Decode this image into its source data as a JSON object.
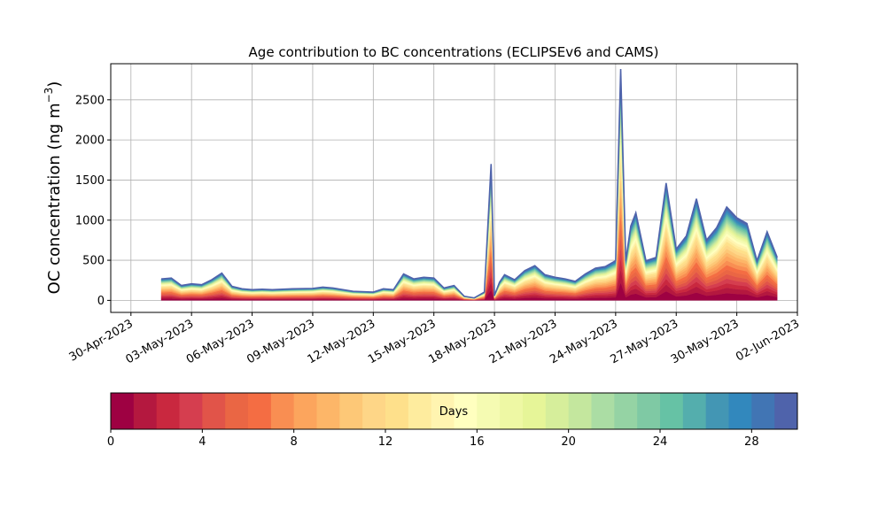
{
  "chart_data": {
    "type": "area",
    "title": "Age contribution to BC concentrations (ECLIPSEv6 and CAMS)",
    "xlabel": "",
    "ylabel": "OC concentration (ng m",
    "ylabel_superscript": "−3",
    "ylabel_close": ")",
    "ylim": [
      -150,
      2950
    ],
    "y_ticks": [
      0,
      500,
      1000,
      1500,
      2000,
      2500
    ],
    "xlim": [
      "2023-04-29",
      "2023-06-02"
    ],
    "x_ticks": [
      {
        "date": "2023-04-30",
        "label": "30-Apr-2023"
      },
      {
        "date": "2023-05-03",
        "label": "03-May-2023"
      },
      {
        "date": "2023-05-06",
        "label": "06-May-2023"
      },
      {
        "date": "2023-05-09",
        "label": "09-May-2023"
      },
      {
        "date": "2023-05-12",
        "label": "12-May-2023"
      },
      {
        "date": "2023-05-15",
        "label": "15-May-2023"
      },
      {
        "date": "2023-05-18",
        "label": "18-May-2023"
      },
      {
        "date": "2023-05-21",
        "label": "21-May-2023"
      },
      {
        "date": "2023-05-24",
        "label": "24-May-2023"
      },
      {
        "date": "2023-05-27",
        "label": "27-May-2023"
      },
      {
        "date": "2023-05-30",
        "label": "30-May-2023"
      },
      {
        "date": "2023-06-02",
        "label": "02-Jun-2023"
      }
    ],
    "grid": true,
    "total_series": {
      "x": [
        "2023-05-01T12:00",
        "2023-05-02T00:00",
        "2023-05-02T12:00",
        "2023-05-03T00:00",
        "2023-05-03T12:00",
        "2023-05-04T00:00",
        "2023-05-04T12:00",
        "2023-05-05T00:00",
        "2023-05-05T12:00",
        "2023-05-06T00:00",
        "2023-05-06T12:00",
        "2023-05-07T00:00",
        "2023-05-08T00:00",
        "2023-05-09T00:00",
        "2023-05-09T12:00",
        "2023-05-10T00:00",
        "2023-05-10T12:00",
        "2023-05-11T00:00",
        "2023-05-12T00:00",
        "2023-05-12T12:00",
        "2023-05-13T00:00",
        "2023-05-13T12:00",
        "2023-05-14T00:00",
        "2023-05-14T12:00",
        "2023-05-15T00:00",
        "2023-05-15T12:00",
        "2023-05-16T00:00",
        "2023-05-16T12:00",
        "2023-05-17T00:00",
        "2023-05-17T12:00",
        "2023-05-17T20:00",
        "2023-05-18T00:00",
        "2023-05-18T06:00",
        "2023-05-18T12:00",
        "2023-05-19T00:00",
        "2023-05-19T12:00",
        "2023-05-20T00:00",
        "2023-05-20T12:00",
        "2023-05-21T00:00",
        "2023-05-21T12:00",
        "2023-05-22T00:00",
        "2023-05-22T12:00",
        "2023-05-23T00:00",
        "2023-05-23T12:00",
        "2023-05-24T00:00",
        "2023-05-24T06:00",
        "2023-05-24T12:00",
        "2023-05-24T18:00",
        "2023-05-25T00:00",
        "2023-05-25T12:00",
        "2023-05-26T00:00",
        "2023-05-26T12:00",
        "2023-05-27T00:00",
        "2023-05-27T12:00",
        "2023-05-28T00:00",
        "2023-05-28T12:00",
        "2023-05-29T00:00",
        "2023-05-29T12:00",
        "2023-05-30T00:00",
        "2023-05-30T12:00",
        "2023-05-31T00:00",
        "2023-05-31T12:00",
        "2023-06-01T00:00"
      ],
      "y": [
        260,
        270,
        180,
        200,
        190,
        250,
        330,
        170,
        140,
        130,
        135,
        130,
        140,
        145,
        160,
        150,
        130,
        110,
        100,
        140,
        130,
        320,
        260,
        280,
        270,
        150,
        180,
        50,
        30,
        100,
        1650,
        60,
        220,
        310,
        250,
        360,
        420,
        310,
        280,
        260,
        230,
        320,
        390,
        410,
        480,
        2800,
        480,
        900,
        1060,
        480,
        520,
        1420,
        620,
        780,
        1230,
        730,
        880,
        1130,
        1000,
        930,
        480,
        830,
        520
      ]
    },
    "layer_shares": [
      0.08,
      0.06,
      0.05,
      0.05,
      0.05,
      0.05,
      0.05,
      0.05,
      0.05,
      0.04,
      0.04,
      0.04,
      0.04,
      0.03,
      0.03,
      0.03,
      0.03,
      0.02,
      0.02,
      0.02,
      0.02,
      0.02,
      0.02,
      0.02,
      0.02,
      0.02,
      0.02,
      0.02,
      0.02,
      0.02
    ],
    "colorbar": {
      "label": "Days",
      "range": [
        0,
        30
      ],
      "ticks": [
        0,
        4,
        8,
        12,
        16,
        20,
        24,
        28
      ],
      "colors": [
        "#9e0142",
        "#b4183f",
        "#c9283f",
        "#d53e4f",
        "#e15449",
        "#ea6644",
        "#f46d43",
        "#f98e52",
        "#fca55d",
        "#fdb668",
        "#fdc877",
        "#fed687",
        "#fee08b",
        "#feec9e",
        "#fff4b0",
        "#ffffbf",
        "#f5fbb2",
        "#eef8a4",
        "#e6f598",
        "#d6ee9b",
        "#c4e79e",
        "#abdda4",
        "#95d3a4",
        "#7fc9a4",
        "#66c2a5",
        "#54aead",
        "#4396b4",
        "#3288bd",
        "#4175b4",
        "#4f63ab"
      ]
    }
  }
}
